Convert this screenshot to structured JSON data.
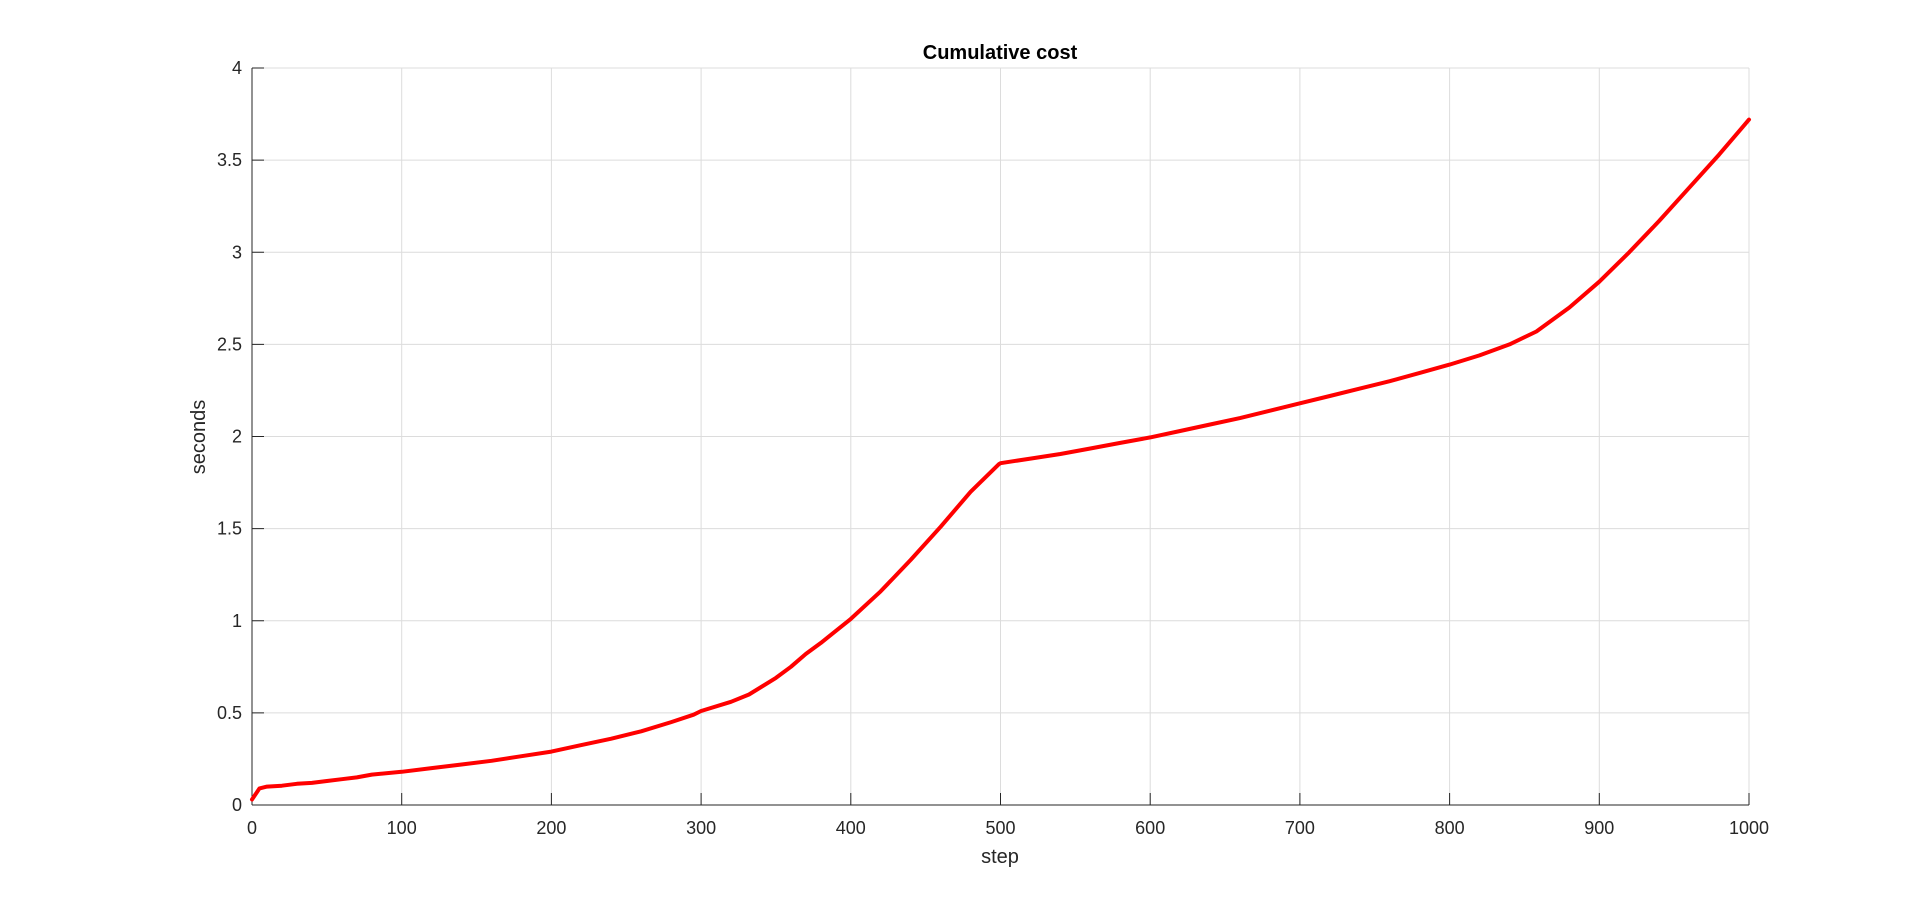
{
  "chart_data": {
    "type": "line",
    "title": "Cumulative cost",
    "xlabel": "step",
    "ylabel": "seconds",
    "xlim": [
      0,
      1000
    ],
    "ylim": [
      0,
      4
    ],
    "xticks": [
      0,
      100,
      200,
      300,
      400,
      500,
      600,
      700,
      800,
      900,
      1000
    ],
    "yticks": [
      0,
      0.5,
      1,
      1.5,
      2,
      2.5,
      3,
      3.5,
      4
    ],
    "xtick_labels": [
      "0",
      "100",
      "200",
      "300",
      "400",
      "500",
      "600",
      "700",
      "800",
      "900",
      "1000"
    ],
    "ytick_labels": [
      "0",
      "0.5",
      "1",
      "1.5",
      "2",
      "2.5",
      "3",
      "3.5",
      "4"
    ],
    "grid": true,
    "series": [
      {
        "color": "#ff0000",
        "x": [
          0,
          5,
          10,
          20,
          30,
          40,
          50,
          60,
          70,
          80,
          100,
          120,
          140,
          160,
          180,
          200,
          220,
          240,
          260,
          280,
          295,
          300,
          320,
          332,
          350,
          360,
          370,
          380,
          400,
          420,
          440,
          460,
          480,
          499,
          500,
          520,
          540,
          560,
          580,
          600,
          620,
          640,
          660,
          680,
          700,
          720,
          740,
          760,
          780,
          800,
          820,
          840,
          858,
          880,
          900,
          920,
          940,
          960,
          980,
          1000
        ],
        "y": [
          0.03,
          0.09,
          0.1,
          0.105,
          0.115,
          0.12,
          0.13,
          0.14,
          0.15,
          0.165,
          0.18,
          0.2,
          0.22,
          0.24,
          0.265,
          0.29,
          0.325,
          0.36,
          0.4,
          0.45,
          0.49,
          0.51,
          0.56,
          0.6,
          0.69,
          0.75,
          0.82,
          0.88,
          1.01,
          1.16,
          1.33,
          1.51,
          1.7,
          1.85,
          1.855,
          1.88,
          1.905,
          1.935,
          1.965,
          1.995,
          2.03,
          2.065,
          2.1,
          2.14,
          2.18,
          2.22,
          2.26,
          2.3,
          2.345,
          2.39,
          2.44,
          2.5,
          2.57,
          2.7,
          2.84,
          3.0,
          3.17,
          3.35,
          3.53,
          3.72
        ]
      }
    ]
  }
}
